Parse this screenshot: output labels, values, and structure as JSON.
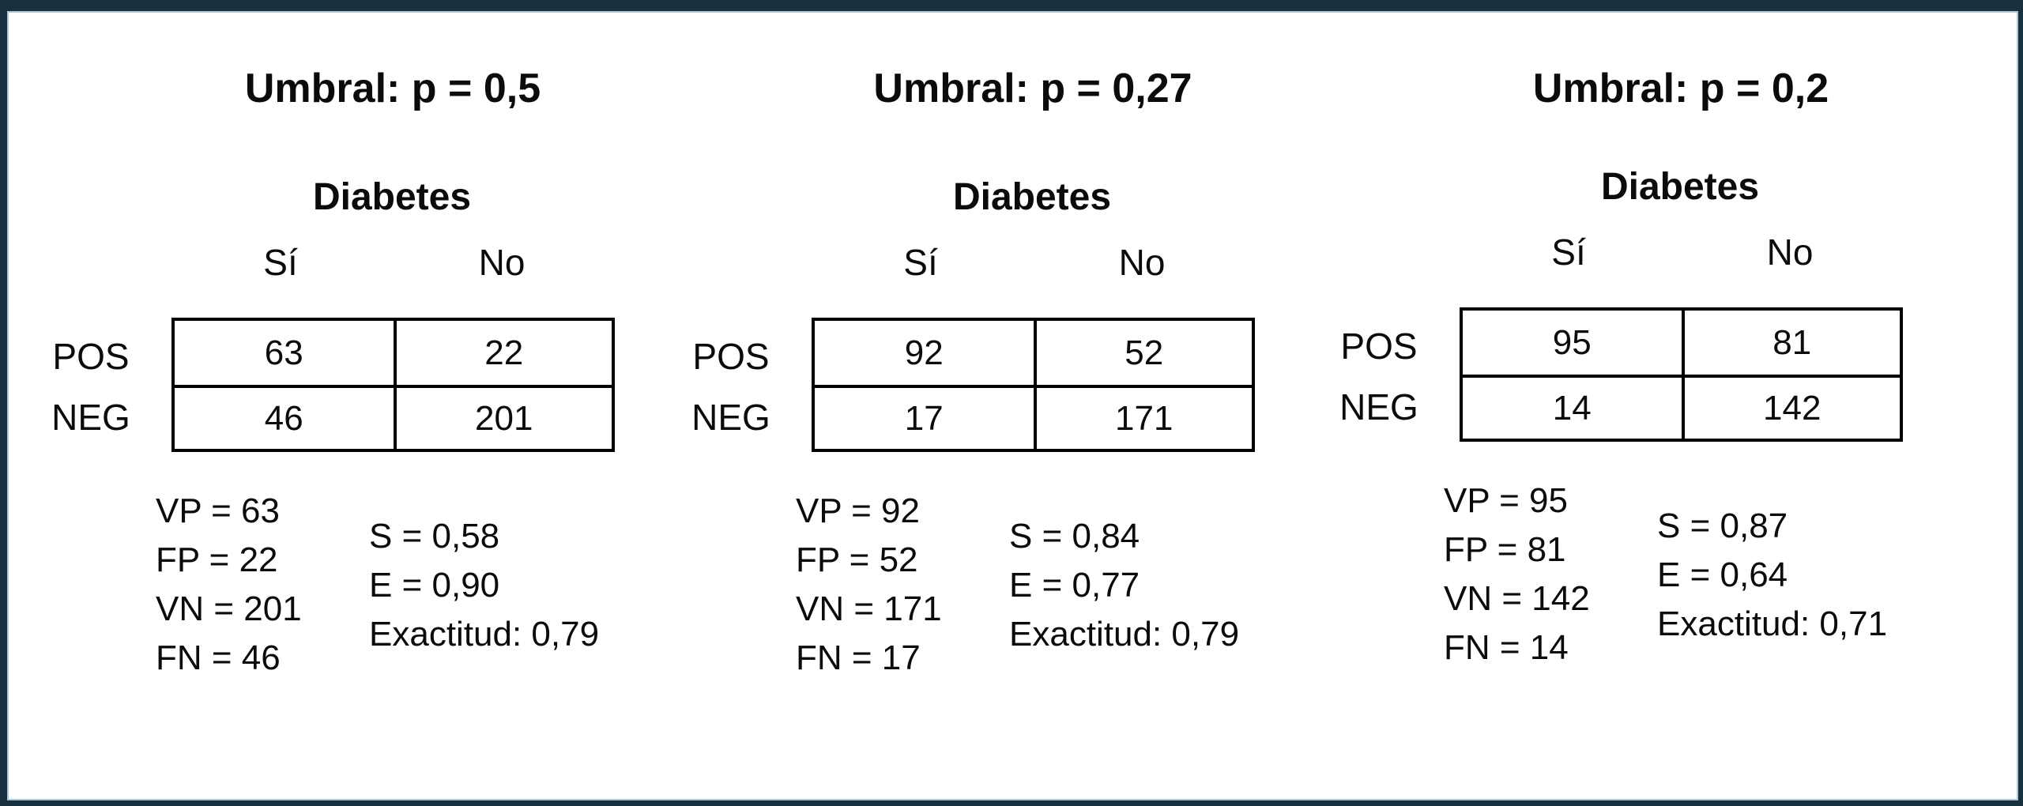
{
  "figure": {
    "background_color": "#ffffff",
    "frame_color": "#17313f",
    "text_color": "#0b0b0b",
    "description_labels": {
      "condition": "Diabetes",
      "col_yes": "Sí",
      "col_no": "No",
      "row_pos": "POS",
      "row_neg": "NEG"
    }
  },
  "panels": [
    {
      "title": "Umbral: p = 0,5",
      "condition_label": "Diabetes",
      "col_headers": [
        "Sí",
        "No"
      ],
      "row_headers": [
        "POS",
        "NEG"
      ],
      "matrix": [
        [
          63,
          22
        ],
        [
          46,
          201
        ]
      ],
      "counts": [
        "VP = 63",
        "FP = 22",
        "VN = 201",
        "FN = 46"
      ],
      "metrics": [
        "S = 0,58",
        "E = 0,90",
        "Exactitud: 0,79"
      ]
    },
    {
      "title": "Umbral: p = 0,27",
      "condition_label": "Diabetes",
      "col_headers": [
        "Sí",
        "No"
      ],
      "row_headers": [
        "POS",
        "NEG"
      ],
      "matrix": [
        [
          92,
          52
        ],
        [
          17,
          171
        ]
      ],
      "counts": [
        "VP = 92",
        "FP = 52",
        "VN = 171",
        "FN = 17"
      ],
      "metrics": [
        "S = 0,84",
        "E = 0,77",
        "Exactitud: 0,79"
      ]
    },
    {
      "title": "Umbral: p = 0,2",
      "condition_label": "Diabetes",
      "col_headers": [
        "Sí",
        "No"
      ],
      "row_headers": [
        "POS",
        "NEG"
      ],
      "matrix": [
        [
          95,
          81
        ],
        [
          14,
          142
        ]
      ],
      "counts": [
        "VP = 95",
        "FP = 81",
        "VN = 142",
        "FN = 14"
      ],
      "metrics": [
        "S = 0,87",
        "E = 0,64",
        "Exactitud: 0,71"
      ]
    }
  ]
}
